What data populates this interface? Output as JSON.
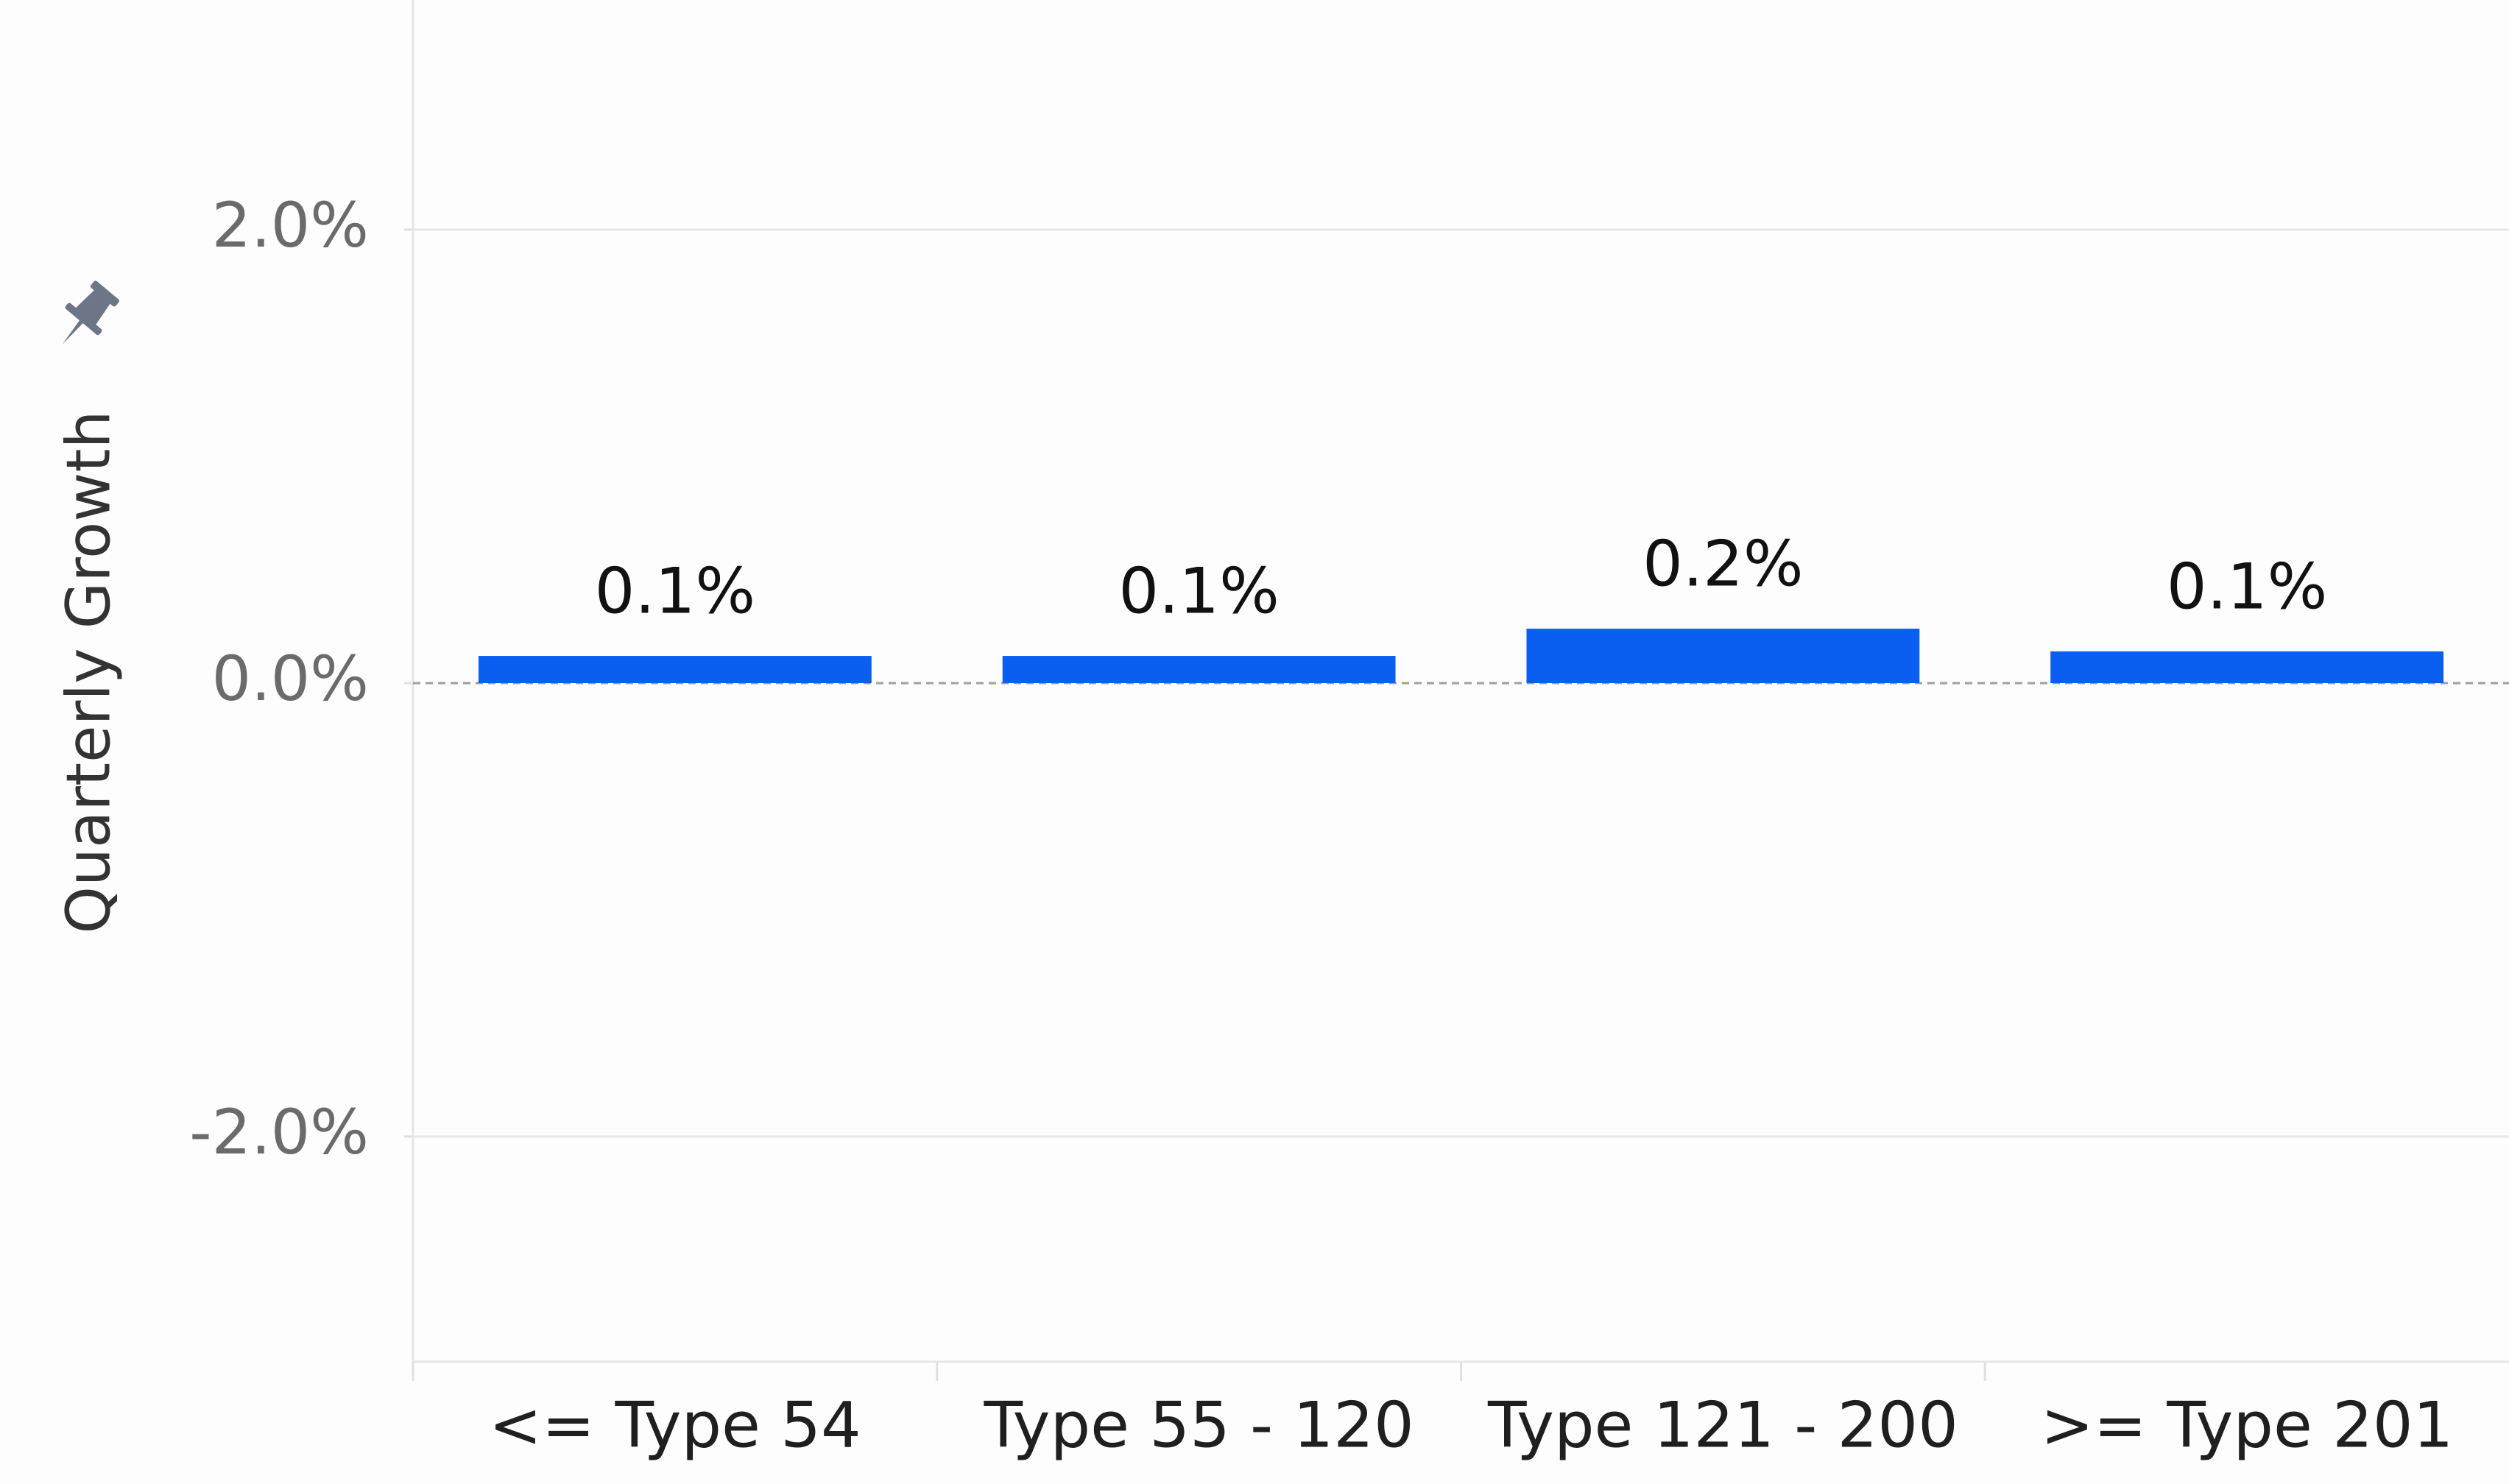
{
  "chart_data": {
    "type": "bar",
    "y_label": "Quarterly Growth",
    "categories": [
      "<= Type 54",
      "Type 55 - 120",
      "Type 121 - 200",
      ">= Type 201"
    ],
    "values": [
      0.12,
      0.12,
      0.24,
      0.14
    ],
    "value_labels": [
      "0.1%",
      "0.1%",
      "0.2%",
      "0.1%"
    ],
    "color": "#0a5ef0",
    "ylim": [
      -3,
      3
    ],
    "yticks": [
      {
        "value": -2,
        "label": "-2.0%"
      },
      {
        "value": 0,
        "label": "0.0%"
      },
      {
        "value": 2,
        "label": "2.0%"
      }
    ],
    "grid": true
  }
}
